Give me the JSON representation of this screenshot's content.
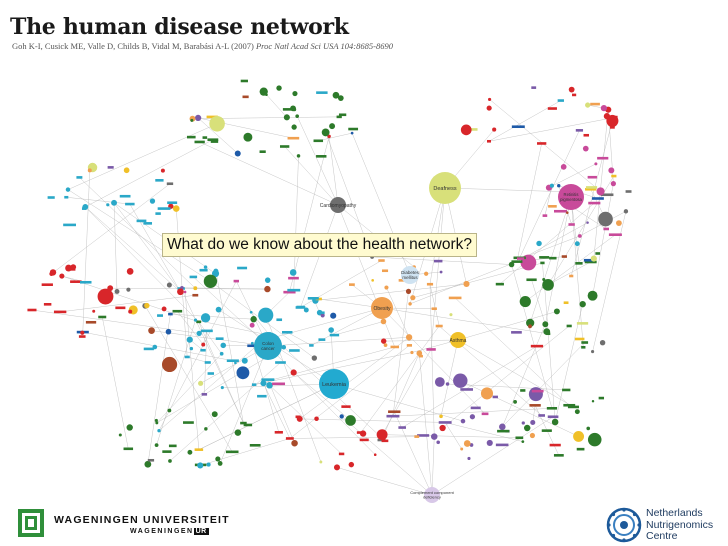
{
  "slide": {
    "title": "The human disease network",
    "citation_authors": "Goh K-I, Cusick ME, Valle D, Childs B, Vidal M, Barabási A-L (2007)",
    "citation_journal": "Proc Natl Acad Sci USA 104:8685-8690",
    "callout": "What do we know about the health network?"
  },
  "network": {
    "labeled_nodes": [
      {
        "label": "Deafness",
        "color": "#d8e07a"
      },
      {
        "label": "Cardiomyopathy",
        "color": "#6e6e6e"
      },
      {
        "label": "Diabetes mellitus",
        "color": "#cfe3f2"
      },
      {
        "label": "Obesity",
        "color": "#f0a050"
      },
      {
        "label": "Asthma",
        "color": "#f0c028"
      },
      {
        "label": "Colon cancer",
        "color": "#2aa8c8"
      },
      {
        "label": "Leukemia",
        "color": "#22aad0"
      },
      {
        "label": "Retinitis pigmentosa",
        "color": "#c84a9a"
      },
      {
        "label": "Complement component deficiency",
        "color": "#d8c8e8"
      }
    ],
    "category_colors": [
      "#d8262a",
      "#2aa8c8",
      "#c84a9a",
      "#2d7a2a",
      "#f0a050",
      "#d8e07a",
      "#7a5aa8",
      "#1e5aa8",
      "#a84a2a",
      "#f0c028",
      "#6e6e6e"
    ]
  },
  "logos": {
    "wur_name": "WAGENINGEN UNIVERSITEIT",
    "wur_sub_a": "WAGENINGEN",
    "wur_sub_b": "UR",
    "nnc_line1": "Netherlands",
    "nnc_line2": "Nutrigenomics",
    "nnc_line3": "Centre"
  }
}
